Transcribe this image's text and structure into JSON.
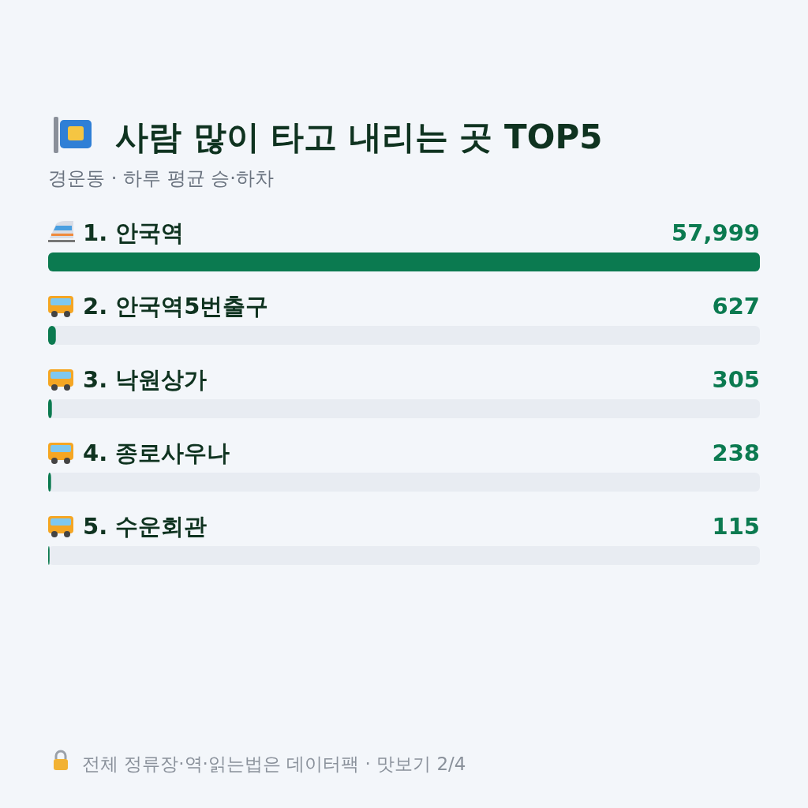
{
  "chart_data": {
    "type": "bar",
    "orientation": "horizontal",
    "title": "사람 많이 타고 내리는 곳 TOP5",
    "subtitle": "경운동 · 하루 평균 승·하차",
    "categories": [
      "1. 안국역",
      "2. 안국역5번출구",
      "3. 낙원상가",
      "4. 종로사우나",
      "5. 수운회관"
    ],
    "values": [
      57999,
      627,
      305,
      238,
      115
    ],
    "value_labels": [
      "57,999",
      "627",
      "305",
      "238",
      "115"
    ],
    "color": "#0b7a50",
    "annotations": [
      "전체 정류장·역·읽는법은 데이터팩 · 맛보기 2/4"
    ]
  }
}
